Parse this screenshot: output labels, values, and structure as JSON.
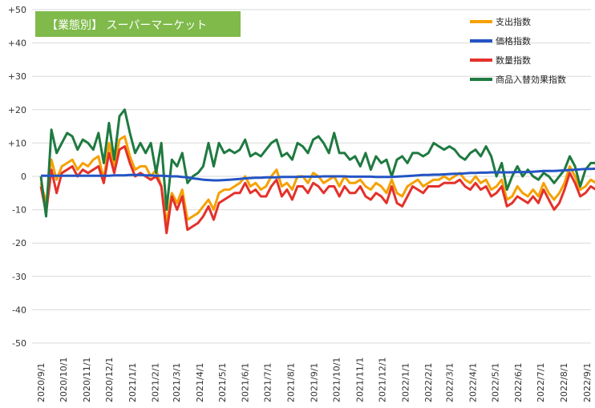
{
  "chart_data": {
    "type": "line",
    "title": "【業態別】 スーパーマーケット",
    "title_bg_color": "#7fba4a",
    "xlabel": "",
    "ylabel": "",
    "ylim": [
      -50,
      50
    ],
    "y_ticks": [
      {
        "value": 50,
        "label": "+50"
      },
      {
        "value": 40,
        "label": "+40"
      },
      {
        "value": 30,
        "label": "+30"
      },
      {
        "value": 20,
        "label": "+20"
      },
      {
        "value": 10,
        "label": "+10"
      },
      {
        "value": 0,
        "label": "0"
      },
      {
        "value": -10,
        "label": "-10"
      },
      {
        "value": -20,
        "label": "-20"
      },
      {
        "value": -30,
        "label": "-30"
      },
      {
        "value": -40,
        "label": "-40"
      },
      {
        "value": -50,
        "label": "-50"
      }
    ],
    "x_tick_labels": [
      "2020/9/1",
      "2020/10/1",
      "2020/11/1",
      "2020/12/1",
      "2021/1/1",
      "2021/2/1",
      "2021/3/1",
      "2021/4/1",
      "2021/5/1",
      "2021/6/1",
      "2021/7/1",
      "2021/8/1",
      "2021/9/1",
      "2021/10/1",
      "2021/11/1",
      "2021/12/1",
      "2022/1/1",
      "2022/2/1",
      "2022/3/1",
      "2022/4/1",
      "2022/5/1",
      "2022/6/1",
      "2022/7/1",
      "2022/8/1",
      "2022/9/1"
    ],
    "grid": true,
    "legend_position": "top-right",
    "series": [
      {
        "name": "支出指数",
        "color": "#f5a100",
        "values": [
          -2,
          -8,
          5,
          -1,
          3,
          4,
          5,
          2,
          4,
          3,
          5,
          6,
          -1,
          10,
          3,
          11,
          12,
          6,
          2,
          3,
          3,
          0,
          2,
          -3,
          -14,
          -5,
          -8,
          -4,
          -13,
          -12,
          -11,
          -9,
          -7,
          -10,
          -5,
          -4,
          -4,
          -3,
          -2,
          0,
          -3,
          -2,
          -4,
          -3,
          0,
          2,
          -3,
          -2,
          -4,
          0,
          0,
          -2,
          1,
          0,
          -2,
          -1,
          0,
          -3,
          0,
          -2,
          -2,
          -1,
          -3,
          -4,
          -2,
          -3,
          -5,
          -1,
          -5,
          -6,
          -3,
          -2,
          -1,
          -3,
          -2,
          -1,
          -1,
          0,
          -1,
          0,
          1,
          -1,
          -2,
          0,
          -2,
          -1,
          -4,
          -3,
          -1,
          -7,
          -6,
          -3,
          -5,
          -6,
          -4,
          -6,
          -2,
          -5,
          -7,
          -5,
          -2,
          3,
          0,
          -4,
          -3,
          -1,
          -2,
          -4,
          -2,
          -3,
          -4
        ],
        "x_start": "2020-09-01",
        "x_step_days": 7
      },
      {
        "name": "価格指数",
        "color": "#2454c4",
        "values": [
          0.2,
          0.2,
          0.2,
          0.2,
          0.2,
          0.2,
          0.2,
          0.2,
          0.2,
          0.2,
          0.2,
          0.2,
          0.2,
          0.2,
          0.3,
          0.3,
          0.3,
          0.4,
          0.4,
          0.4,
          0.3,
          0.3,
          0.2,
          0.2,
          0.1,
          0,
          0,
          -0.2,
          -0.3,
          -0.6,
          -0.8,
          -1,
          -1.1,
          -1.2,
          -1.2,
          -1.1,
          -1,
          -0.9,
          -0.8,
          -0.6,
          -0.5,
          -0.4,
          -0.4,
          -0.3,
          -0.3,
          -0.3,
          -0.2,
          -0.2,
          -0.2,
          -0.2,
          -0.1,
          -0.1,
          -0.1,
          -0.1,
          0,
          0,
          0,
          0,
          0,
          -0.1,
          -0.1,
          -0.1,
          -0.1,
          -0.1,
          -0.2,
          -0.2,
          -0.2,
          -0.2,
          -0.1,
          0,
          0.1,
          0.2,
          0.3,
          0.4,
          0.4,
          0.5,
          0.5,
          0.6,
          0.7,
          0.8,
          0.8,
          0.9,
          1,
          1,
          1.1,
          1.1,
          1.2,
          1.2,
          1.2,
          1.2,
          1.2,
          1.3,
          1.3,
          1.3,
          1.4,
          1.5,
          1.6,
          1.6,
          1.6,
          1.7,
          1.8,
          1.9,
          2,
          2.1,
          2.2,
          2.2,
          2.3,
          2.4,
          2.5,
          2.6,
          2.7
        ],
        "x_start": "2020-09-01",
        "x_step_days": 7
      },
      {
        "name": "数量指数",
        "color": "#e4312b",
        "values": [
          -3,
          -11,
          2,
          -5,
          1,
          2,
          3,
          0,
          2,
          1,
          2,
          3,
          -2,
          7,
          1,
          8,
          9,
          4,
          0,
          1,
          0,
          -1,
          0,
          -3,
          -17,
          -6,
          -10,
          -6,
          -16,
          -15,
          -14,
          -12,
          -9,
          -13,
          -8,
          -7,
          -6,
          -5,
          -5,
          -2,
          -5,
          -4,
          -6,
          -6,
          -3,
          -1,
          -6,
          -4,
          -7,
          -3,
          -3,
          -5,
          -2,
          -3,
          -5,
          -3,
          -3,
          -6,
          -3,
          -5,
          -5,
          -3,
          -6,
          -7,
          -5,
          -6,
          -8,
          -3,
          -8,
          -9,
          -6,
          -3,
          -4,
          -5,
          -3,
          -3,
          -3,
          -2,
          -2,
          -2,
          -1,
          -3,
          -4,
          -2,
          -4,
          -3,
          -6,
          -5,
          -3,
          -9,
          -8,
          -6,
          -7,
          -8,
          -6,
          -8,
          -4,
          -7,
          -10,
          -8,
          -4,
          1,
          -2,
          -6,
          -5,
          -3,
          -4,
          -6,
          -4,
          -7,
          -8
        ],
        "x_start": "2020-09-01",
        "x_step_days": 7
      },
      {
        "name": "商品入替効果指数",
        "color": "#1f7a40",
        "values": [
          0,
          -12,
          14,
          7,
          10,
          13,
          12,
          8,
          11,
          10,
          8,
          13,
          4,
          16,
          5,
          18,
          20,
          13,
          7,
          10,
          7,
          10,
          1,
          10,
          -10,
          5,
          3,
          7,
          -2,
          0,
          1,
          3,
          10,
          3,
          10,
          7,
          8,
          7,
          8,
          11,
          6,
          7,
          6,
          8,
          10,
          11,
          6,
          7,
          5,
          10,
          9,
          7,
          11,
          12,
          10,
          7,
          13,
          7,
          7,
          5,
          6,
          3,
          7,
          2,
          6,
          4,
          5,
          0,
          5,
          6,
          4,
          7,
          7,
          6,
          7,
          10,
          9,
          8,
          9,
          8,
          6,
          5,
          7,
          8,
          6,
          9,
          6,
          0,
          4,
          -4,
          0,
          3,
          0,
          2,
          0,
          -1,
          1,
          0,
          -2,
          0,
          2,
          6,
          3,
          -3,
          2,
          4,
          4,
          0,
          3,
          0,
          3
        ],
        "x_start": "2020-09-01",
        "x_step_days": 7
      }
    ]
  }
}
